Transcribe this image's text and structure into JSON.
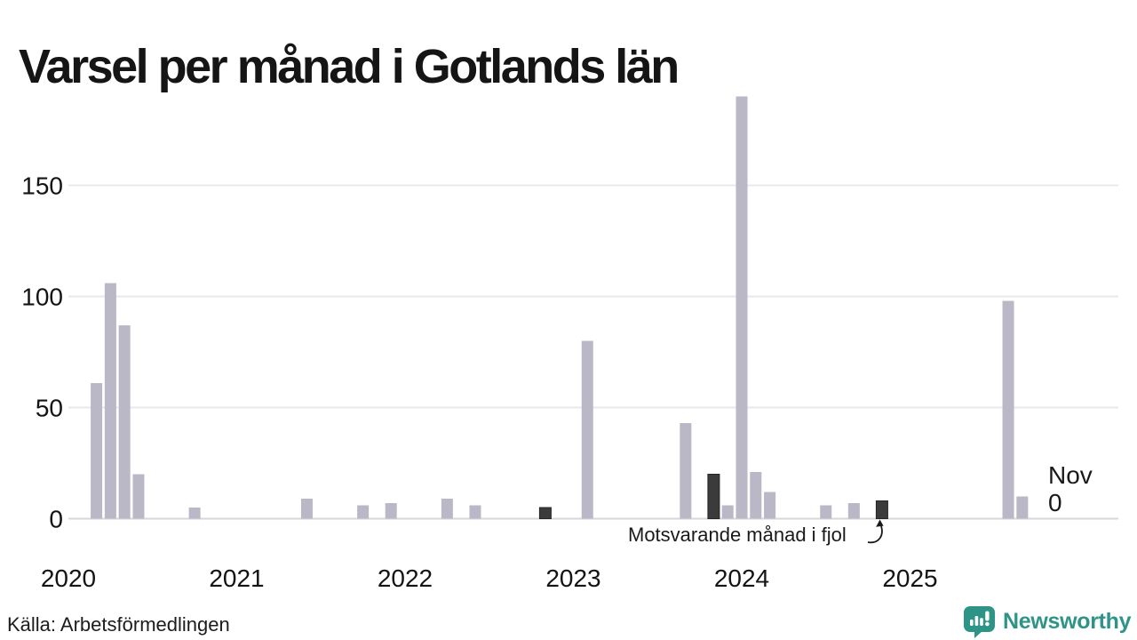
{
  "title": "Varsel per månad i Gotlands län",
  "source": "Källa: Arbetsförmedlingen",
  "branding": {
    "name": "Newsworthy",
    "color": "#2e9488"
  },
  "annotation": {
    "text": "Motsvarande månad i fjol"
  },
  "latest_label": {
    "month": "Nov",
    "value": "0"
  },
  "chart_data": {
    "type": "bar",
    "title": "Varsel per månad i Gotlands län",
    "xlabel": "",
    "ylabel": "",
    "ylim": [
      0,
      200
    ],
    "yticks": [
      0,
      50,
      100,
      150
    ],
    "x_ticks_years": [
      "2020",
      "2021",
      "2022",
      "2023",
      "2024",
      "2025"
    ],
    "x_start": "2020-01",
    "x_end": "2025-11",
    "grid": "horizontal",
    "highlight_meaning": "Motsvarande månad i fjol",
    "annotation_points_to": "2024-11",
    "latest_month": {
      "month": "2025-11",
      "label": "Nov",
      "value": 0
    },
    "colors": {
      "bar": "#bab7c7",
      "highlight_bar": "#3b3b3b"
    },
    "bars": [
      {
        "month": "2020-03",
        "value": 61
      },
      {
        "month": "2020-04",
        "value": 106
      },
      {
        "month": "2020-05",
        "value": 87
      },
      {
        "month": "2020-06",
        "value": 20
      },
      {
        "month": "2020-10",
        "value": 5
      },
      {
        "month": "2021-06",
        "value": 9
      },
      {
        "month": "2021-10",
        "value": 6
      },
      {
        "month": "2021-12",
        "value": 7
      },
      {
        "month": "2022-04",
        "value": 9
      },
      {
        "month": "2022-06",
        "value": 6
      },
      {
        "month": "2022-11",
        "value": 5,
        "highlight": true
      },
      {
        "month": "2023-02",
        "value": 80
      },
      {
        "month": "2023-09",
        "value": 43
      },
      {
        "month": "2023-11",
        "value": 20,
        "highlight": true
      },
      {
        "month": "2023-12",
        "value": 6
      },
      {
        "month": "2024-01",
        "value": 190
      },
      {
        "month": "2024-02",
        "value": 21
      },
      {
        "month": "2024-03",
        "value": 12
      },
      {
        "month": "2024-07",
        "value": 6
      },
      {
        "month": "2024-09",
        "value": 7
      },
      {
        "month": "2024-11",
        "value": 8,
        "highlight": true
      },
      {
        "month": "2025-08",
        "value": 98
      },
      {
        "month": "2025-09",
        "value": 10
      },
      {
        "month": "2025-11",
        "value": 0,
        "current": true
      }
    ]
  }
}
